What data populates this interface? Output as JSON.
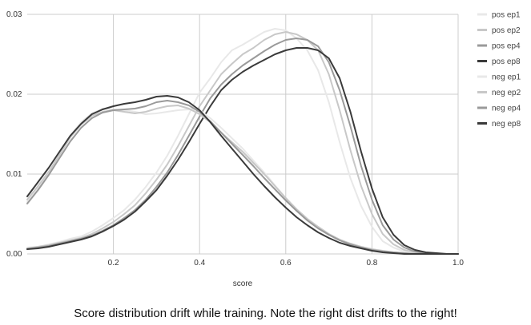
{
  "caption": "Score distribution drift while training. Note the right dist drifts to the right!",
  "colors": {
    "ep1": "#e8e8e8",
    "ep2": "#c8c8c8",
    "ep4": "#9a9a9a",
    "ep8": "#3a3a3a",
    "grid": "#cccccc"
  },
  "chart_data": {
    "type": "line",
    "title": "",
    "xlabel": "score",
    "ylabel": "",
    "xlim": [
      0,
      1
    ],
    "ylim": [
      0,
      0.03
    ],
    "x_ticks": [
      "0.2",
      "0.4",
      "0.6",
      "0.8",
      "1.0"
    ],
    "y_ticks": [
      "0.00",
      "0.01",
      "0.02",
      "0.03"
    ],
    "grid": true,
    "legend_position": "right",
    "x": [
      0.0,
      0.025,
      0.05,
      0.075,
      0.1,
      0.125,
      0.15,
      0.175,
      0.2,
      0.225,
      0.25,
      0.275,
      0.3,
      0.325,
      0.35,
      0.375,
      0.4,
      0.425,
      0.45,
      0.475,
      0.5,
      0.525,
      0.55,
      0.575,
      0.6,
      0.625,
      0.65,
      0.675,
      0.7,
      0.725,
      0.75,
      0.775,
      0.8,
      0.825,
      0.85,
      0.875,
      0.9,
      0.925,
      0.95,
      0.975,
      1.0
    ],
    "series": [
      {
        "name": "pos ep1",
        "color": "ep1",
        "values": [
          0.0008,
          0.0009,
          0.0012,
          0.0015,
          0.0019,
          0.0022,
          0.0028,
          0.0036,
          0.0045,
          0.0055,
          0.0068,
          0.0084,
          0.0102,
          0.0123,
          0.0148,
          0.0175,
          0.0202,
          0.022,
          0.024,
          0.0255,
          0.0262,
          0.027,
          0.0278,
          0.0282,
          0.028,
          0.027,
          0.0255,
          0.023,
          0.019,
          0.014,
          0.0095,
          0.006,
          0.0034,
          0.0016,
          0.0008,
          0.0003,
          0.0001,
          0.0,
          0.0,
          0.0,
          0.0
        ]
      },
      {
        "name": "pos ep2",
        "color": "ep2",
        "values": [
          0.0007,
          0.0009,
          0.0011,
          0.0014,
          0.0017,
          0.002,
          0.0025,
          0.0032,
          0.004,
          0.005,
          0.0061,
          0.0076,
          0.0093,
          0.0112,
          0.0135,
          0.016,
          0.0185,
          0.0205,
          0.0225,
          0.0238,
          0.025,
          0.0258,
          0.0268,
          0.0275,
          0.0278,
          0.0275,
          0.0268,
          0.0255,
          0.0225,
          0.018,
          0.013,
          0.0085,
          0.005,
          0.0025,
          0.0012,
          0.0005,
          0.0002,
          0.0001,
          0.0,
          0.0,
          0.0
        ]
      },
      {
        "name": "pos ep4",
        "color": "ep4",
        "values": [
          0.0006,
          0.0008,
          0.001,
          0.0013,
          0.0016,
          0.0019,
          0.0023,
          0.0029,
          0.0036,
          0.0045,
          0.0055,
          0.0068,
          0.0084,
          0.0102,
          0.0124,
          0.0148,
          0.0172,
          0.0195,
          0.0212,
          0.0225,
          0.0236,
          0.0245,
          0.0254,
          0.0262,
          0.0268,
          0.027,
          0.0268,
          0.026,
          0.024,
          0.0205,
          0.016,
          0.011,
          0.0068,
          0.0036,
          0.0018,
          0.0008,
          0.0003,
          0.0001,
          0.0,
          0.0,
          0.0
        ]
      },
      {
        "name": "pos ep8",
        "color": "ep8",
        "values": [
          0.0006,
          0.0007,
          0.0009,
          0.0012,
          0.0015,
          0.0018,
          0.0022,
          0.0028,
          0.0035,
          0.0043,
          0.0053,
          0.0066,
          0.008,
          0.0098,
          0.0118,
          0.014,
          0.0163,
          0.0185,
          0.0205,
          0.0218,
          0.0228,
          0.0236,
          0.0243,
          0.025,
          0.0255,
          0.0258,
          0.0258,
          0.0255,
          0.0245,
          0.022,
          0.0178,
          0.0128,
          0.0082,
          0.0046,
          0.0024,
          0.0011,
          0.0005,
          0.0002,
          0.0001,
          0.0,
          0.0
        ]
      },
      {
        "name": "neg ep1",
        "color": "ep1",
        "values": [
          0.0065,
          0.0082,
          0.0102,
          0.0125,
          0.0148,
          0.0165,
          0.0176,
          0.0182,
          0.0181,
          0.018,
          0.0178,
          0.0175,
          0.0176,
          0.0178,
          0.018,
          0.0181,
          0.018,
          0.017,
          0.0158,
          0.0145,
          0.0132,
          0.0117,
          0.0102,
          0.0086,
          0.007,
          0.0055,
          0.0042,
          0.0032,
          0.0024,
          0.0017,
          0.0012,
          0.0008,
          0.0005,
          0.0003,
          0.0002,
          0.0001,
          0.0,
          0.0,
          0.0,
          0.0,
          0.0
        ]
      },
      {
        "name": "neg ep2",
        "color": "ep2",
        "values": [
          0.0068,
          0.0085,
          0.0103,
          0.0124,
          0.0146,
          0.0162,
          0.0173,
          0.0178,
          0.018,
          0.0178,
          0.0176,
          0.0178,
          0.0182,
          0.0185,
          0.0186,
          0.0182,
          0.0175,
          0.0165,
          0.0152,
          0.014,
          0.0128,
          0.0114,
          0.01,
          0.0085,
          0.007,
          0.0056,
          0.0044,
          0.0034,
          0.0025,
          0.0018,
          0.0013,
          0.0009,
          0.0006,
          0.0004,
          0.0002,
          0.0001,
          0.0,
          0.0,
          0.0,
          0.0,
          0.0
        ]
      },
      {
        "name": "neg ep4",
        "color": "ep4",
        "values": [
          0.0063,
          0.008,
          0.0099,
          0.012,
          0.0141,
          0.0158,
          0.017,
          0.0177,
          0.018,
          0.0181,
          0.0182,
          0.0185,
          0.019,
          0.0192,
          0.019,
          0.0186,
          0.0178,
          0.0166,
          0.0152,
          0.0138,
          0.0124,
          0.011,
          0.0095,
          0.0081,
          0.0067,
          0.0054,
          0.0042,
          0.0032,
          0.0024,
          0.0017,
          0.0012,
          0.0008,
          0.0005,
          0.0003,
          0.0002,
          0.0001,
          0.0,
          0.0,
          0.0,
          0.0,
          0.0
        ]
      },
      {
        "name": "neg ep8",
        "color": "ep8",
        "values": [
          0.0072,
          0.009,
          0.0108,
          0.0128,
          0.0148,
          0.0163,
          0.0175,
          0.0181,
          0.0185,
          0.0188,
          0.019,
          0.0193,
          0.0197,
          0.0198,
          0.0196,
          0.019,
          0.018,
          0.0165,
          0.0148,
          0.0132,
          0.0116,
          0.01,
          0.0085,
          0.0071,
          0.0058,
          0.0046,
          0.0036,
          0.0027,
          0.002,
          0.0014,
          0.001,
          0.0007,
          0.0004,
          0.0002,
          0.0001,
          0.0,
          0.0,
          0.0,
          0.0,
          0.0,
          0.0
        ]
      }
    ]
  }
}
